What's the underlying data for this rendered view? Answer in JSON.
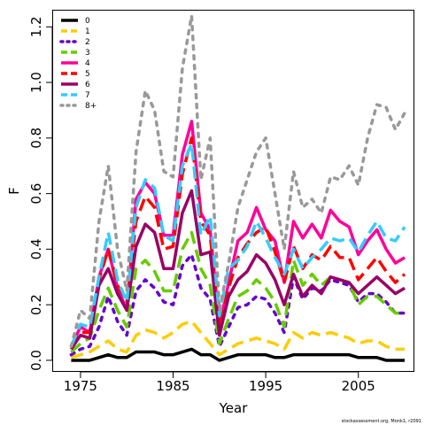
{
  "credit": "stockassessment.org, Monk1, r2091",
  "chart_data": {
    "type": "line",
    "xlabel": "Year",
    "ylabel": "F",
    "xlim": [
      1972,
      2011
    ],
    "ylim": [
      -0.04,
      1.26
    ],
    "xticks": [
      1975,
      1985,
      1995,
      2005
    ],
    "yticks": [
      0.0,
      0.2,
      0.4,
      0.6,
      0.8,
      1.0,
      1.2
    ],
    "ytick_labels": [
      "0.0",
      "0.2",
      "0.4",
      "0.6",
      "0.8",
      "1.0",
      "1.2"
    ],
    "legend_position": "top-left",
    "x": [
      1974,
      1975,
      1976,
      1977,
      1978,
      1979,
      1980,
      1981,
      1982,
      1983,
      1984,
      1985,
      1986,
      1987,
      1988,
      1989,
      1990,
      1991,
      1992,
      1993,
      1994,
      1995,
      1996,
      1997,
      1998,
      1999,
      2000,
      2001,
      2002,
      2003,
      2004,
      2005,
      2006,
      2007,
      2008,
      2009,
      2010
    ],
    "series": [
      {
        "name": "0",
        "color": "#000000",
        "dash": "solid",
        "values": [
          0.0,
          0.0,
          0.0,
          0.01,
          0.02,
          0.01,
          0.01,
          0.03,
          0.03,
          0.03,
          0.02,
          0.02,
          0.03,
          0.04,
          0.02,
          0.02,
          0.0,
          0.01,
          0.02,
          0.02,
          0.02,
          0.02,
          0.01,
          0.01,
          0.02,
          0.02,
          0.02,
          0.02,
          0.02,
          0.02,
          0.02,
          0.01,
          0.01,
          0.01,
          0.0,
          0.0,
          0.0
        ]
      },
      {
        "name": "1",
        "color": "#ffcc00",
        "dash": "dash",
        "values": [
          0.01,
          0.02,
          0.03,
          0.05,
          0.07,
          0.04,
          0.03,
          0.09,
          0.11,
          0.1,
          0.08,
          0.1,
          0.13,
          0.14,
          0.1,
          0.06,
          0.02,
          0.04,
          0.06,
          0.07,
          0.08,
          0.07,
          0.06,
          0.04,
          0.1,
          0.08,
          0.1,
          0.09,
          0.1,
          0.09,
          0.08,
          0.06,
          0.07,
          0.07,
          0.05,
          0.04,
          0.04
        ]
      },
      {
        "name": "2",
        "color": "#6600cc",
        "dash": "dot",
        "values": [
          0.02,
          0.04,
          0.05,
          0.12,
          0.23,
          0.14,
          0.09,
          0.25,
          0.29,
          0.26,
          0.21,
          0.2,
          0.34,
          0.38,
          0.26,
          0.22,
          0.05,
          0.12,
          0.19,
          0.2,
          0.23,
          0.22,
          0.17,
          0.1,
          0.3,
          0.22,
          0.26,
          0.25,
          0.29,
          0.28,
          0.27,
          0.21,
          0.24,
          0.24,
          0.21,
          0.17,
          0.17
        ]
      },
      {
        "name": "3",
        "color": "#66cc00",
        "dash": "dash",
        "values": [
          0.03,
          0.06,
          0.08,
          0.18,
          0.26,
          0.18,
          0.12,
          0.33,
          0.36,
          0.32,
          0.25,
          0.25,
          0.4,
          0.46,
          0.33,
          0.27,
          0.06,
          0.15,
          0.23,
          0.25,
          0.29,
          0.26,
          0.21,
          0.12,
          0.36,
          0.27,
          0.31,
          0.27,
          0.3,
          0.29,
          0.28,
          0.2,
          0.23,
          0.23,
          0.2,
          0.17,
          0.17
        ]
      },
      {
        "name": "4",
        "color": "#ff0099",
        "dash": "solid",
        "values": [
          0.05,
          0.12,
          0.1,
          0.3,
          0.4,
          0.26,
          0.18,
          0.58,
          0.64,
          0.6,
          0.45,
          0.45,
          0.74,
          0.86,
          0.53,
          0.47,
          0.12,
          0.28,
          0.43,
          0.46,
          0.55,
          0.47,
          0.43,
          0.28,
          0.5,
          0.44,
          0.49,
          0.44,
          0.54,
          0.5,
          0.48,
          0.38,
          0.43,
          0.47,
          0.4,
          0.35,
          0.37
        ]
      },
      {
        "name": "5",
        "color": "#ff0000",
        "dash": "dash",
        "values": [
          0.05,
          0.1,
          0.1,
          0.29,
          0.4,
          0.27,
          0.21,
          0.5,
          0.59,
          0.55,
          0.4,
          0.41,
          0.67,
          0.8,
          0.5,
          0.45,
          0.12,
          0.26,
          0.37,
          0.42,
          0.46,
          0.48,
          0.39,
          0.28,
          0.41,
          0.33,
          0.38,
          0.36,
          0.41,
          0.37,
          0.37,
          0.29,
          0.33,
          0.37,
          0.32,
          0.28,
          0.31
        ]
      },
      {
        "name": "6",
        "color": "#990066",
        "dash": "solid",
        "values": [
          0.04,
          0.09,
          0.08,
          0.27,
          0.33,
          0.24,
          0.18,
          0.41,
          0.49,
          0.46,
          0.33,
          0.33,
          0.53,
          0.61,
          0.38,
          0.39,
          0.09,
          0.23,
          0.29,
          0.32,
          0.38,
          0.35,
          0.29,
          0.2,
          0.31,
          0.23,
          0.27,
          0.24,
          0.3,
          0.29,
          0.28,
          0.24,
          0.27,
          0.3,
          0.27,
          0.24,
          0.26
        ]
      },
      {
        "name": "7",
        "color": "#33ccff",
        "dash": "dash",
        "values": [
          0.05,
          0.13,
          0.12,
          0.3,
          0.46,
          0.29,
          0.21,
          0.55,
          0.65,
          0.62,
          0.45,
          0.43,
          0.7,
          0.78,
          0.45,
          0.52,
          0.16,
          0.33,
          0.36,
          0.41,
          0.5,
          0.44,
          0.37,
          0.31,
          0.4,
          0.33,
          0.37,
          0.4,
          0.44,
          0.43,
          0.44,
          0.39,
          0.45,
          0.5,
          0.44,
          0.43,
          0.48
        ]
      },
      {
        "name": "8+",
        "color": "#999999",
        "dash": "dot",
        "values": [
          0.05,
          0.18,
          0.15,
          0.5,
          0.7,
          0.4,
          0.25,
          0.75,
          0.97,
          0.9,
          0.68,
          0.66,
          1.05,
          1.24,
          0.65,
          0.8,
          0.18,
          0.35,
          0.55,
          0.65,
          0.75,
          0.8,
          0.6,
          0.4,
          0.68,
          0.55,
          0.58,
          0.53,
          0.66,
          0.65,
          0.7,
          0.63,
          0.8,
          0.92,
          0.91,
          0.83,
          0.89
        ]
      }
    ]
  }
}
